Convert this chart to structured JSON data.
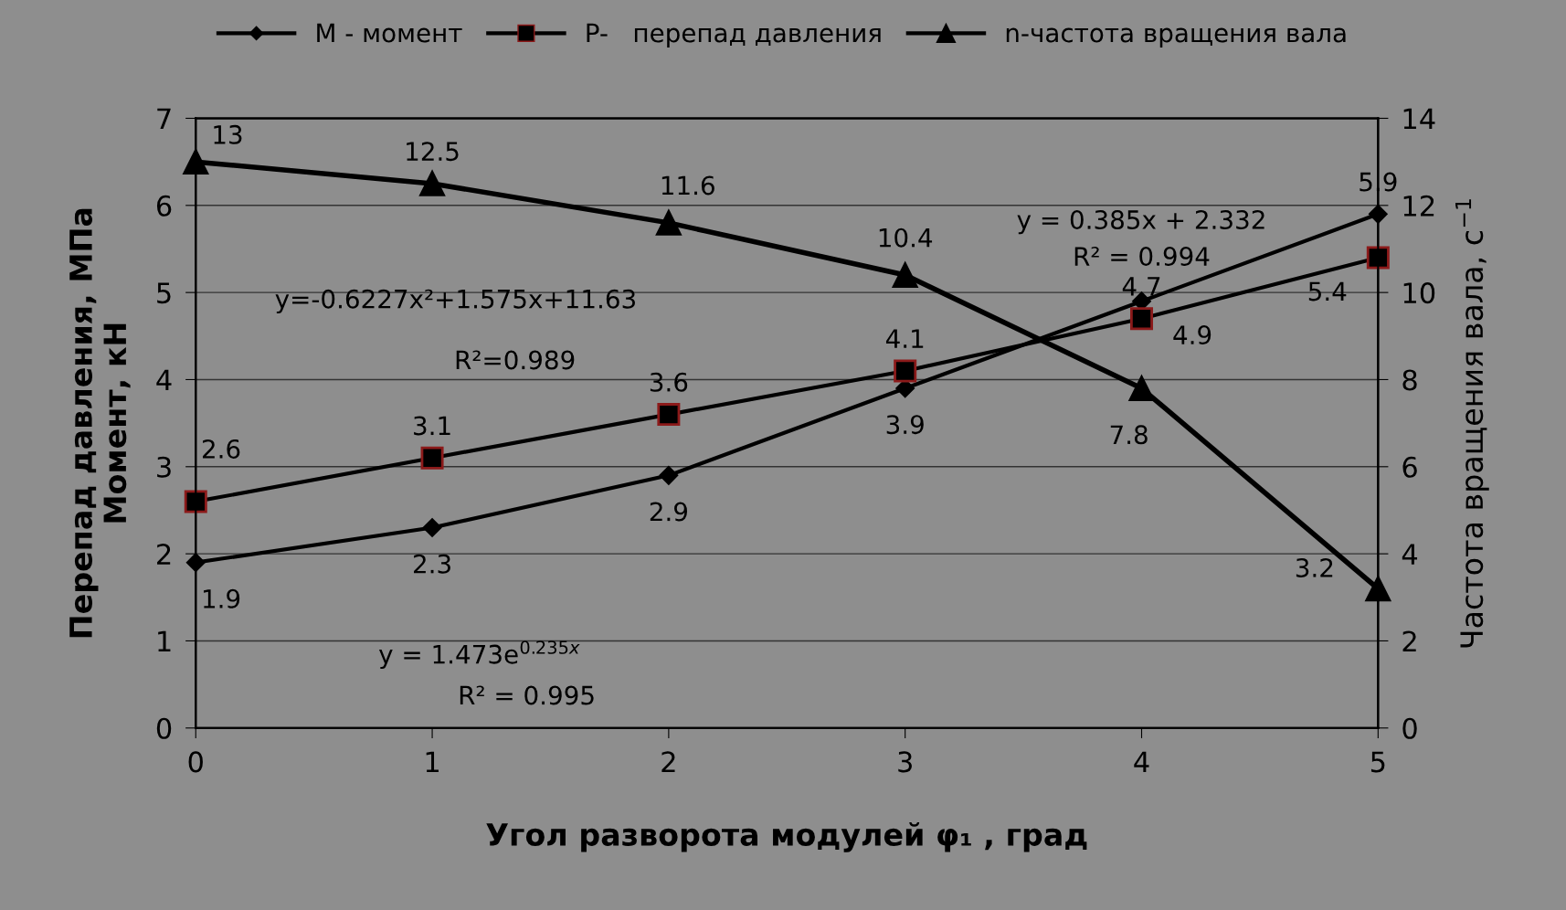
{
  "chart_data": {
    "type": "line",
    "xlabel": "Угол разворота модулей φ₁ , град",
    "ylabel": "Перепад давления, МПа\nМомент, кН",
    "y2label": "Частота вращения вала, с$^{−1}$",
    "x": [
      0,
      1,
      2,
      3,
      4,
      5
    ],
    "xlim": [
      0,
      5
    ],
    "xticks": [
      0,
      1,
      2,
      3,
      4,
      5
    ],
    "ylim": [
      0,
      7
    ],
    "yticks": [
      0,
      1,
      2,
      3,
      4,
      5,
      6,
      7
    ],
    "y2lim": [
      0,
      14
    ],
    "y2ticks": [
      0,
      2,
      4,
      6,
      8,
      10,
      12,
      14
    ],
    "grid": "y",
    "legend": "top",
    "data_labels": true,
    "series": [
      {
        "name": "M - момент",
        "color": "#000000",
        "marker": "diamond",
        "values": [
          1.9,
          2.3,
          2.9,
          3.9,
          4.9,
          5.9
        ]
      },
      {
        "name": "P-   перепад давления",
        "color": "#000000",
        "marker": "square",
        "values": [
          2.6,
          3.1,
          3.6,
          4.1,
          4.7,
          5.4
        ]
      },
      {
        "name": "n-частота вращения вала",
        "color": "#000000",
        "marker": "triangle",
        "axis": "y2",
        "values": [
          13,
          12.5,
          11.6,
          10.4,
          7.8,
          3.2
        ]
      }
    ],
    "annotations": [
      "y = 1.473e$^{0.235x}$",
      "R² = 0.995",
      "y=-0.6227x²+1.575x+11.63",
      "R²=0.989",
      "y = 0.385x + 2.332",
      "R² = 0.994"
    ]
  }
}
